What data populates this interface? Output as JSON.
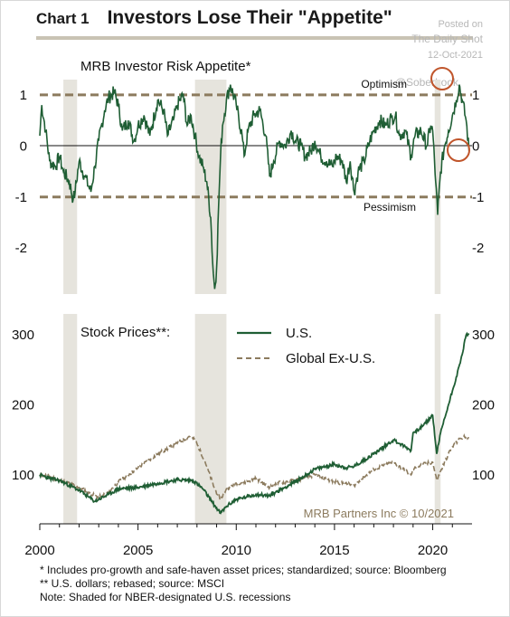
{
  "header": {
    "chart_number": "Chart 1",
    "title": "Investors Lose Their \"Appetite\""
  },
  "watermark": {
    "line1": "Posted on",
    "line2": "The Daily Shot",
    "line3": "12-Oct-2021",
    "line4": "@SoberLook"
  },
  "credit": "MRB Partners Inc © 10/2021",
  "footnotes": {
    "note1": "*  Includes pro-growth and safe-haven asset prices; standardized; source: Bloomberg",
    "note2": "** U.S. dollars; rebased; source: MSCI",
    "note3": "Note: Shaded for NBER-designated U.S. recessions"
  },
  "colors": {
    "us": "#1f5e34",
    "global": "#8c7b5e",
    "band": "#e6e4dd",
    "ref_lines": "#8c7b5e",
    "circle": "#c0552b"
  },
  "chart_data": [
    {
      "type": "line",
      "title": "MRB Investor Risk Appetite*",
      "xlim": [
        2000,
        2022
      ],
      "ylim": [
        -2.9,
        1.3
      ],
      "yticks": [
        1,
        0,
        -1,
        -2
      ],
      "ytick_labels": [
        "1",
        "0",
        "-1",
        "-2"
      ],
      "reference_lines": [
        {
          "y": 1,
          "label": "Optimism"
        },
        {
          "y": -1,
          "label": "Pessimism"
        }
      ],
      "recessions": [
        [
          2001.2,
          2001.9
        ],
        [
          2007.9,
          2009.5
        ],
        [
          2020.1,
          2020.4
        ]
      ],
      "series": [
        {
          "x": [
            2000,
            2000.1,
            2000.3,
            2000.5,
            2000.8,
            2001,
            2001.2,
            2001.5,
            2001.7,
            2001.8,
            2002,
            2002.3,
            2002.6,
            2002.8,
            2003,
            2003.3,
            2003.5,
            2003.8,
            2004,
            2004.2,
            2004.5,
            2004.8,
            2005,
            2005.3,
            2005.6,
            2006,
            2006.3,
            2006.5,
            2006.8,
            2007,
            2007.3,
            2007.5,
            2007.7,
            2007.9,
            2008.1,
            2008.3,
            2008.5,
            2008.7,
            2008.8,
            2008.9,
            2009,
            2009.1,
            2009.2,
            2009.3,
            2009.5,
            2009.7,
            2010,
            2010.3,
            2010.4,
            2010.6,
            2010.9,
            2011.2,
            2011.5,
            2011.7,
            2011.9,
            2012.2,
            2012.5,
            2012.8,
            2013,
            2013.3,
            2013.5,
            2013.8,
            2014,
            2014.3,
            2014.6,
            2014.9,
            2015.1,
            2015.4,
            2015.6,
            2015.8,
            2016,
            2016.2,
            2016.5,
            2016.8,
            2017,
            2017.3,
            2017.6,
            2017.9,
            2018.1,
            2018.3,
            2018.6,
            2018.9,
            2019.1,
            2019.4,
            2019.7,
            2019.9,
            2020,
            2020.15,
            2020.25,
            2020.4,
            2020.6,
            2020.8,
            2021,
            2021.2,
            2021.35,
            2021.5,
            2021.7,
            2021.85
          ],
          "y": [
            0.2,
            0.8,
            0.3,
            -0.3,
            -0.4,
            -0.2,
            -0.5,
            -0.7,
            -1.05,
            -0.9,
            -0.3,
            -0.6,
            -0.9,
            -0.4,
            0.1,
            0.7,
            0.95,
            1.05,
            0.8,
            0.3,
            0.5,
            0.1,
            0.4,
            0.6,
            0.2,
            0.9,
            0.7,
            0.2,
            0.5,
            0.8,
            1.0,
            0.4,
            0.6,
            0.2,
            -0.2,
            -0.4,
            -0.7,
            -1.4,
            -2.3,
            -2.8,
            -2.4,
            -1.2,
            -0.2,
            0.4,
            0.9,
            1.2,
            0.8,
            0.2,
            -0.2,
            0.3,
            0.6,
            0.7,
            0.2,
            -0.6,
            -0.3,
            0.1,
            0.0,
            0.3,
            0.1,
            0.0,
            -0.2,
            -0.1,
            0.1,
            -0.2,
            -0.3,
            -0.4,
            -0.2,
            -0.3,
            -0.7,
            -0.3,
            -0.9,
            -0.5,
            -0.3,
            0.1,
            0.3,
            0.5,
            0.4,
            0.55,
            0.6,
            0.2,
            0.3,
            -0.2,
            0.2,
            0.3,
            0.0,
            0.4,
            0.3,
            -0.7,
            -1.35,
            -0.5,
            0.0,
            0.3,
            0.6,
            0.9,
            1.2,
            0.9,
            0.5,
            -0.1
          ]
        }
      ]
    },
    {
      "type": "line",
      "title": "Stock Prices**:",
      "xlim": [
        2000,
        2022
      ],
      "ylim": [
        30,
        330
      ],
      "yticks": [
        100,
        200,
        300
      ],
      "ytick_labels": [
        "100",
        "200",
        "300"
      ],
      "xticks": [
        2000,
        2005,
        2010,
        2015,
        2020
      ],
      "xtick_labels": [
        "2000",
        "2005",
        "2010",
        "2015",
        "2020"
      ],
      "legend_position": "top-right",
      "recessions": [
        [
          2001.2,
          2001.9
        ],
        [
          2007.9,
          2009.5
        ],
        [
          2020.1,
          2020.4
        ]
      ],
      "series": [
        {
          "name": "U.S.",
          "x": [
            2000,
            2000.5,
            2001,
            2001.5,
            2002,
            2002.5,
            2002.8,
            2003,
            2003.5,
            2004,
            2005,
            2006,
            2007,
            2007.8,
            2008.3,
            2008.8,
            2009.2,
            2009.5,
            2010,
            2010.5,
            2011,
            2011.7,
            2012,
            2013,
            2014,
            2015,
            2015.6,
            2016,
            2017,
            2018,
            2018.9,
            2019,
            2019.5,
            2020,
            2020.2,
            2020.4,
            2020.8,
            2021,
            2021.4,
            2021.7,
            2021.85
          ],
          "y": [
            100,
            95,
            92,
            85,
            78,
            68,
            62,
            65,
            72,
            80,
            82,
            88,
            93,
            92,
            80,
            60,
            45,
            55,
            65,
            68,
            72,
            70,
            75,
            90,
            108,
            115,
            110,
            112,
            130,
            150,
            135,
            160,
            170,
            185,
            130,
            160,
            200,
            220,
            260,
            300,
            302
          ]
        },
        {
          "name": "Global Ex-U.S.",
          "x": [
            2000,
            2000.5,
            2001,
            2001.5,
            2002,
            2002.5,
            2002.8,
            2003,
            2003.5,
            2004,
            2005,
            2006,
            2007,
            2007.6,
            2007.9,
            2008.4,
            2008.9,
            2009.2,
            2009.5,
            2010,
            2010.5,
            2011,
            2011.7,
            2012,
            2013,
            2014,
            2015,
            2016,
            2017,
            2018,
            2018.9,
            2019,
            2019.5,
            2020,
            2020.2,
            2020.4,
            2020.8,
            2021,
            2021.4,
            2021.7,
            2021.85
          ],
          "y": [
            100,
            98,
            92,
            88,
            82,
            75,
            70,
            68,
            75,
            90,
            110,
            130,
            145,
            155,
            150,
            120,
            80,
            65,
            80,
            88,
            90,
            95,
            82,
            88,
            92,
            100,
            90,
            85,
            108,
            118,
            100,
            108,
            115,
            118,
            92,
            105,
            130,
            140,
            152,
            155,
            153
          ]
        }
      ]
    }
  ]
}
